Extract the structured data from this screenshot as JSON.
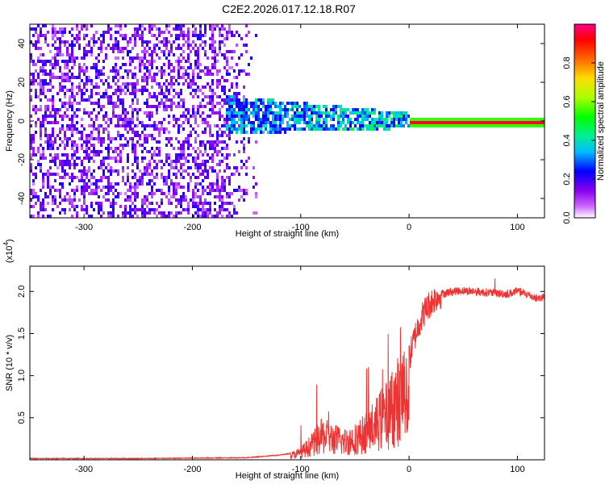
{
  "title": "C2E2.2026.017.12.18.R07",
  "chart_data": [
    {
      "type": "heatmap",
      "xlabel": "Height of straight line (km)",
      "ylabel": "Frequency (Hz)",
      "xlim": [
        -350,
        125
      ],
      "ylim": [
        -50,
        50
      ],
      "x_ticks": [
        -300,
        -200,
        -100,
        0,
        100
      ],
      "y_ticks": [
        -40,
        -20,
        0,
        20,
        40
      ],
      "colorbar": {
        "label": "Normalized spectral amplitude",
        "range": [
          0,
          1
        ],
        "ticks": [
          "0.0",
          "0.2",
          "0.4",
          "0.6",
          "0.8"
        ]
      },
      "features": [
        {
          "region": "noise",
          "x_range": [
            -350,
            -140
          ],
          "y_range": [
            -50,
            50
          ],
          "amplitude": 0.15
        },
        {
          "region": "signal-band",
          "x_range": [
            -170,
            0
          ],
          "y_center": 4,
          "y_center_end": 1,
          "width": 10,
          "amplitude_range": [
            0.2,
            0.45
          ]
        },
        {
          "region": "tone",
          "x_range": [
            0,
            125
          ],
          "y": 0,
          "amplitude": 0.95
        }
      ]
    },
    {
      "type": "line",
      "xlabel": "Height of straight line (km)",
      "ylabel": "SNR (10 * v/v)",
      "y_scale_label": "(x10",
      "y_scale_exp": "4",
      "y_scale_close": ")",
      "xlim": [
        -350,
        125
      ],
      "ylim": [
        0,
        2.3
      ],
      "x_ticks": [
        -300,
        -200,
        -100,
        0,
        100
      ],
      "y_ticks": [
        "0.5",
        "1.0",
        "1.5",
        "2.0"
      ],
      "series": [
        {
          "color": "#ee3333",
          "x": [
            -350,
            -250,
            -150,
            -120,
            -110,
            -100,
            -90,
            -80,
            -70,
            -60,
            -50,
            -40,
            -30,
            -25,
            -20,
            -15,
            -10,
            -5,
            0,
            5,
            10,
            15,
            20,
            25,
            30,
            40,
            50,
            60,
            70,
            80,
            90,
            100,
            110,
            115,
            120,
            125
          ],
          "y": [
            0.01,
            0.01,
            0.02,
            0.05,
            0.07,
            0.12,
            0.25,
            0.4,
            0.35,
            0.3,
            0.35,
            0.45,
            0.6,
            0.7,
            0.75,
            0.9,
            1.0,
            1.1,
            1.2,
            1.45,
            1.65,
            1.78,
            1.87,
            1.93,
            1.97,
            2.0,
            2.01,
            2.0,
            1.99,
            1.98,
            1.97,
            2.0,
            1.96,
            1.93,
            1.92,
            1.94
          ]
        }
      ]
    }
  ]
}
